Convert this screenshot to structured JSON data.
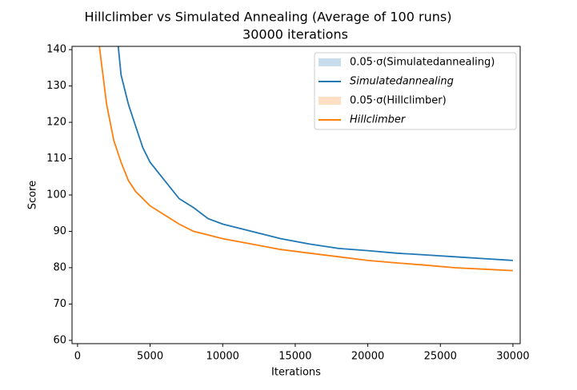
{
  "chart_data": {
    "type": "line",
    "title": "Hillclimber vs Simulated Annealing (Average of 100 runs)",
    "subtitle": "30000 iterations",
    "x_label": "Iterations",
    "y_label": "Score",
    "xlim": [
      -380,
      30500
    ],
    "ylim": [
      59.1,
      140.9
    ],
    "xticks": [
      0,
      5000,
      10000,
      15000,
      20000,
      25000,
      30000
    ],
    "yticks": [
      60,
      70,
      80,
      90,
      100,
      110,
      120,
      130,
      140
    ],
    "legend": "upper right",
    "bands": [
      {
        "name": "0.05·σ(Simulatedannealing)",
        "color": "#1f77b4"
      },
      {
        "name": "0.05·σ(Hillclimber)",
        "color": "#ff7f0e"
      }
    ],
    "series": [
      {
        "name": "Simulatedannealing",
        "color": "#1f77b4",
        "x": [
          2800,
          3000,
          3500,
          4000,
          4500,
          5000,
          6000,
          7000,
          8000,
          9000,
          10000,
          12000,
          14000,
          16000,
          18000,
          20000,
          22000,
          24000,
          26000,
          28000,
          30000
        ],
        "values": [
          141,
          133,
          125,
          119,
          113,
          109,
          104,
          99,
          96.5,
          93.5,
          92,
          90,
          88,
          86.5,
          85.3,
          84.7,
          84,
          83.5,
          83,
          82.5,
          82
        ]
      },
      {
        "name": "Hillclimber",
        "color": "#ff7f0e",
        "x": [
          1500,
          2000,
          2500,
          3000,
          3500,
          4000,
          5000,
          6000,
          7000,
          8000,
          9000,
          10000,
          12000,
          14000,
          16000,
          18000,
          20000,
          22000,
          24000,
          26000,
          28000,
          30000
        ],
        "values": [
          141,
          125,
          115,
          109,
          104,
          101,
          97,
          94.5,
          92,
          90,
          89,
          88,
          86.5,
          85,
          84,
          83,
          82,
          81.3,
          80.7,
          80,
          79.6,
          79.2
        ]
      }
    ]
  }
}
